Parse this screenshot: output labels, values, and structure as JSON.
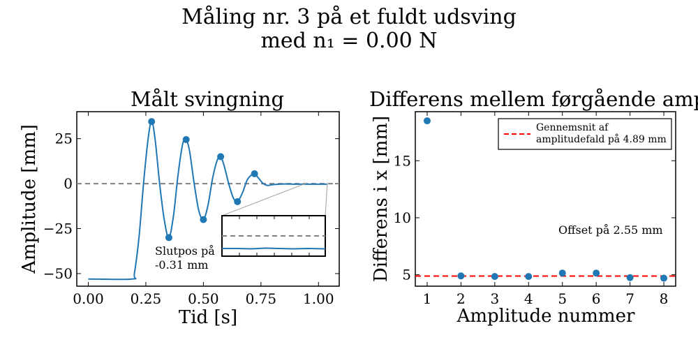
{
  "figure": {
    "title_line1": "Måling nr. 3 på et fuldt udsving",
    "title_line2": "med n₁ = 0.00 N"
  },
  "chart_data": [
    {
      "type": "line",
      "title": "Målt svingning",
      "xlabel": "Tid [s]",
      "ylabel": "Amplitude [mm]",
      "xlim": [
        -0.05,
        1.09
      ],
      "ylim": [
        -57,
        40
      ],
      "xticks": [
        "0.00",
        "0.25",
        "0.50",
        "0.75",
        "1.00"
      ],
      "yticks": [
        "25",
        "0",
        "−25",
        "−50"
      ],
      "xtick_values": [
        0,
        0.25,
        0.5,
        0.75,
        1.0
      ],
      "ytick_values": [
        25,
        0,
        -25,
        -50
      ],
      "series": [
        {
          "x": [
            0,
            0.19,
            0.2,
            0.22,
            0.24,
            0.26,
            0.275,
            0.29,
            0.31,
            0.33,
            0.35,
            0.37,
            0.39,
            0.41,
            0.425,
            0.44,
            0.46,
            0.48,
            0.5,
            0.52,
            0.54,
            0.56,
            0.575,
            0.59,
            0.61,
            0.63,
            0.648,
            0.67,
            0.69,
            0.71,
            0.722,
            0.74,
            0.76,
            0.78,
            0.8,
            0.85,
            0.9,
            0.95,
            1.0,
            1.04
          ],
          "y": [
            -53,
            -53,
            -50,
            -30,
            0,
            25,
            34.5,
            25,
            0,
            -20,
            -30,
            -18,
            5,
            22,
            24.5,
            18,
            0,
            -15,
            -20,
            -12,
            3,
            13,
            15,
            10,
            0,
            -8,
            -10,
            -5,
            2,
            5,
            5.5,
            3,
            0,
            -1,
            -0.6,
            -0.2,
            -0.3,
            -0.3,
            -0.3,
            -0.31
          ]
        }
      ],
      "peaks": {
        "x": [
          0.275,
          0.35,
          0.425,
          0.5,
          0.575,
          0.648,
          0.722
        ],
        "y": [
          34.5,
          -30,
          24.5,
          -20,
          15,
          -10,
          5.5
        ]
      },
      "zero_line": 0,
      "annotation": "Slutpos på\n-0.31 mm",
      "inset": {
        "type": "line",
        "description_value": -0.31
      },
      "color": "#1f77b4",
      "zero_line_color": "#808080"
    },
    {
      "type": "scatter",
      "title": "Differens mellem førgående amplitude",
      "xlabel": "Amplitude nummer",
      "ylabel": "Differens i x [mm]",
      "xlim": [
        0.65,
        8.35
      ],
      "ylim": [
        4.0,
        19.3
      ],
      "xticks": [
        "1",
        "2",
        "3",
        "4",
        "5",
        "6",
        "7",
        "8"
      ],
      "yticks": [
        "5",
        "10",
        "15"
      ],
      "xtick_values": [
        1,
        2,
        3,
        4,
        5,
        6,
        7,
        8
      ],
      "ytick_values": [
        5,
        10,
        15
      ],
      "x": [
        1,
        2,
        3,
        4,
        5,
        6,
        7,
        8
      ],
      "y": [
        18.5,
        4.9,
        4.85,
        4.85,
        5.15,
        5.15,
        4.75,
        4.7
      ],
      "mean_line": 4.89,
      "legend": {
        "entry_line1": "Gennemsnit af",
        "entry_line2": "amplitudefald på 4.89 mm",
        "location": "upper right"
      },
      "annotation": "Offset på 2.55 mm",
      "color": "#1f77b4",
      "mean_line_color": "#ff0000"
    }
  ]
}
